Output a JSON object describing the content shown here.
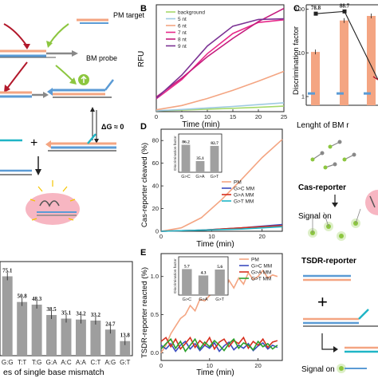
{
  "panel_labels": {
    "B": "B",
    "C": "C",
    "D": "D",
    "E": "E"
  },
  "schematic_left": {
    "pm_target": "PM target",
    "bm_probe": "BM probe",
    "delta_g": "ΔG ≈ 0",
    "plus": "+"
  },
  "schematic_right_top": {
    "cas_reporter": "Cas-reporter",
    "signal_on": "Signal on"
  },
  "schematic_right_bottom": {
    "tsdr_reporter": "TSDR-reporter",
    "plus": "+",
    "signal_on": "Signal on"
  },
  "colors": {
    "bar_gray": "#9e9e9e",
    "orange": "#f4a582",
    "blue": "#5b9bd5",
    "green_arrow": "#8cc63f",
    "red_arrow": "#b2182b",
    "pink_blob": "#f7b6c2",
    "teal": "#1fb5c6"
  },
  "chart_data": [
    {
      "panel": "A-bottom",
      "type": "bar",
      "title": "",
      "xlabel": "es of single base mismatch",
      "ylabel": "",
      "categories": [
        "G:G",
        "T:T",
        "T:G",
        "G:A",
        "A:C",
        "A:A",
        "C:T",
        "A:G",
        "G:T"
      ],
      "values": [
        75.1,
        50.8,
        48.3,
        38.5,
        35.1,
        34.2,
        33.2,
        24.7,
        13.8
      ],
      "value_labels": [
        "75.1",
        "50.8",
        "48.3",
        "38.5",
        "35.1",
        "34.2",
        "33.2",
        "24.7",
        "13.8"
      ]
    },
    {
      "panel": "B",
      "type": "line",
      "xlabel": "Time (min)",
      "ylabel": "RFU",
      "xticks": [
        "0",
        "5",
        "10",
        "15",
        "20",
        "25"
      ],
      "xlim": [
        0,
        25
      ],
      "ylim": [
        0,
        35
      ],
      "legend": [
        "background",
        "5 nt",
        "6 nt",
        "7 nt",
        "8 nt",
        "9 nt"
      ],
      "series": [
        {
          "name": "background",
          "color": "#a6d96a",
          "x": [
            0,
            5,
            10,
            15,
            20,
            25
          ],
          "y": [
            0.3,
            0.5,
            0.8,
            1.1,
            1.4,
            1.8
          ]
        },
        {
          "name": "5 nt",
          "color": "#9ecae1",
          "x": [
            0,
            5,
            10,
            15,
            20,
            25
          ],
          "y": [
            0.3,
            0.7,
            1.2,
            1.7,
            2.3,
            2.9
          ]
        },
        {
          "name": "6 nt",
          "color": "#f4a582",
          "x": [
            0,
            5,
            10,
            15,
            20,
            25
          ],
          "y": [
            0.6,
            2.0,
            4.3,
            7.0,
            10.0,
            13.2
          ]
        },
        {
          "name": "7 nt",
          "color": "#e7298a",
          "x": [
            0,
            5,
            10,
            15,
            20,
            25
          ],
          "y": [
            4.2,
            10.5,
            19.0,
            25.6,
            29.2,
            30.1
          ]
        },
        {
          "name": "8 nt",
          "color": "#c51b7d",
          "x": [
            0,
            5,
            10,
            15,
            20,
            25
          ],
          "y": [
            4.8,
            11.0,
            18.0,
            24.0,
            29.5,
            33.8
          ]
        },
        {
          "name": "9 nt",
          "color": "#7b3294",
          "x": [
            0,
            5,
            10,
            15,
            20,
            25
          ],
          "y": [
            4.4,
            12.0,
            21.5,
            28.0,
            30.2,
            30.4
          ]
        }
      ]
    },
    {
      "panel": "C",
      "type": "bar",
      "xlabel": "Lenght of BM r",
      "ylabel": "Discrimination factor",
      "log_scale": true,
      "yticks": [
        "1",
        "10",
        "100"
      ],
      "annotations": [
        "78.8",
        "88.7"
      ],
      "line_values": [
        78.8,
        88.7
      ],
      "series": [
        {
          "name": "orange",
          "color": "#f4a582",
          "values": [
            10.5,
            55,
            70
          ]
        },
        {
          "name": "blue",
          "color": "#5b9bd5",
          "values": [
            1.2,
            1.2,
            1.2
          ]
        }
      ]
    },
    {
      "panel": "D",
      "type": "line",
      "xlabel": "Time (min)",
      "ylabel": "Cas-reporter cleaved (%)",
      "xticks": [
        "0",
        "10",
        "20"
      ],
      "yticks": [
        "0",
        "20",
        "40",
        "60",
        "80"
      ],
      "xlim": [
        0,
        24
      ],
      "ylim": [
        0,
        90
      ],
      "legend": [
        "PM",
        "G>C MM",
        "G>A MM",
        "G>T MM"
      ],
      "series": [
        {
          "name": "PM",
          "color": "#f4a582",
          "x": [
            0,
            4,
            8,
            12,
            16,
            20,
            24
          ],
          "y": [
            0,
            3,
            12,
            28,
            46,
            65,
            81
          ]
        },
        {
          "name": "G>C MM",
          "color": "#3b4cc0",
          "x": [
            0,
            8,
            16,
            24
          ],
          "y": [
            0,
            1,
            3,
            6
          ]
        },
        {
          "name": "G>A MM",
          "color": "#d7301f",
          "x": [
            0,
            8,
            16,
            24
          ],
          "y": [
            0,
            1,
            3,
            5
          ]
        },
        {
          "name": "G>T MM",
          "color": "#1fb5c6",
          "x": [
            0,
            8,
            16,
            24
          ],
          "y": [
            0,
            1,
            2,
            4
          ]
        }
      ],
      "inset": {
        "ylabel": "Discrimination factor",
        "categories": [
          "G>C",
          "G>A",
          "G>T"
        ],
        "values": [
          86.2,
          35.1,
          82.7
        ],
        "value_labels": [
          "86.2",
          "35.1",
          "82.7"
        ]
      }
    },
    {
      "panel": "E",
      "type": "line",
      "xlabel": "Time (min)",
      "ylabel": "TSDR-reporter reacted (%)",
      "xticks": [
        "0",
        "10",
        "20"
      ],
      "yticks": [
        "0.0",
        "0.5",
        "1.0"
      ],
      "xlim": [
        0,
        25
      ],
      "ylim": [
        -0.1,
        1.3
      ],
      "legend": [
        "PM",
        "G>C MM",
        "G>A MM",
        "G>T MM"
      ],
      "series": [
        {
          "name": "PM",
          "color": "#f4a582",
          "x": [
            0,
            1,
            2,
            3,
            4,
            5,
            6,
            7,
            8,
            9,
            10,
            11,
            12,
            13,
            14,
            15,
            16,
            17,
            18,
            19,
            20,
            21,
            22,
            23,
            24
          ],
          "y": [
            0.0,
            0.1,
            0.25,
            0.35,
            0.45,
            0.5,
            0.62,
            0.55,
            0.7,
            0.68,
            0.75,
            0.8,
            0.88,
            0.78,
            0.95,
            0.85,
            0.98,
            0.9,
            1.05,
            0.96,
            1.0,
            1.08,
            0.98,
            1.02,
            1.0
          ]
        },
        {
          "name": "G>C MM",
          "color": "#3b4cc0",
          "x": [
            0,
            1,
            2,
            3,
            4,
            5,
            6,
            7,
            8,
            9,
            10,
            11,
            12,
            13,
            14,
            15,
            16,
            17,
            18,
            19,
            20,
            21,
            22,
            23,
            24
          ],
          "y": [
            0.1,
            0.05,
            0.12,
            0.02,
            0.1,
            0.15,
            0.05,
            0.12,
            0.03,
            0.1,
            0.06,
            0.13,
            0.02,
            0.09,
            0.14,
            0.04,
            0.1,
            0.06,
            0.12,
            0.03,
            0.09,
            0.13,
            0.05,
            0.1,
            0.07
          ]
        },
        {
          "name": "G>A MM",
          "color": "#d7301f",
          "x": [
            0,
            1,
            2,
            3,
            4,
            5,
            6,
            7,
            8,
            9,
            10,
            11,
            12,
            13,
            14,
            15,
            16,
            17,
            18,
            19,
            20,
            21,
            22,
            23,
            24
          ],
          "y": [
            0.15,
            0.2,
            0.08,
            0.18,
            0.05,
            0.12,
            0.2,
            0.07,
            0.16,
            0.1,
            0.2,
            0.05,
            0.14,
            0.18,
            0.08,
            0.16,
            0.12,
            0.2,
            0.06,
            0.15,
            0.1,
            0.18,
            0.07,
            0.14,
            0.16
          ]
        },
        {
          "name": "G>T MM",
          "color": "#2ca02c",
          "x": [
            0,
            1,
            2,
            3,
            4,
            5,
            6,
            7,
            8,
            9,
            10,
            11,
            12,
            13,
            14,
            15,
            16,
            17,
            18,
            19,
            20,
            21,
            22,
            23,
            24
          ],
          "y": [
            0.05,
            0.12,
            0.18,
            0.06,
            0.15,
            0.02,
            0.1,
            0.18,
            0.05,
            0.14,
            0.08,
            0.16,
            0.1,
            0.03,
            0.12,
            0.18,
            0.06,
            0.13,
            0.1,
            0.04,
            0.15,
            0.08,
            0.12,
            0.05,
            0.1
          ]
        }
      ],
      "inset": {
        "ylabel": "Discrimination factor",
        "categories": [
          "G>C",
          "G>A",
          "G>T"
        ],
        "values": [
          5.7,
          4.3,
          5.6
        ],
        "value_labels": [
          "5.7",
          "4.3",
          "5.6"
        ]
      }
    }
  ]
}
